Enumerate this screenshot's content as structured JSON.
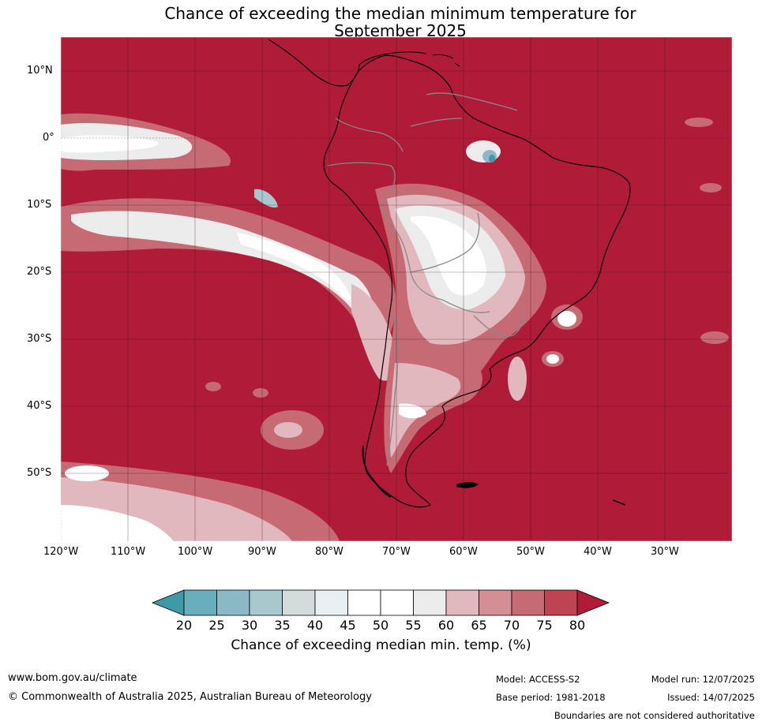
{
  "title": {
    "line1": "Chance of exceeding the median minimum temperature for",
    "line2": "September 2025"
  },
  "lat_labels": [
    "10°N",
    "0°",
    "10°S",
    "20°S",
    "30°S",
    "40°S",
    "50°S"
  ],
  "lon_labels": [
    "120°W",
    "110°W",
    "100°W",
    "90°W",
    "80°W",
    "70°W",
    "60°W",
    "50°W",
    "40°W",
    "30°W"
  ],
  "colorbar": {
    "ticks": [
      "20",
      "25",
      "30",
      "35",
      "40",
      "45",
      "50",
      "55",
      "60",
      "65",
      "70",
      "75",
      "80"
    ],
    "colors": [
      "#3f9aa7",
      "#6aaebd",
      "#8ab9c5",
      "#a9c8cd",
      "#d3dbdb",
      "#eaf0f1",
      "#ffffff",
      "#ffffff",
      "#ececec",
      "#e0b8bd",
      "#d48e96",
      "#c66a74",
      "#be4453",
      "#b01c38"
    ],
    "label": "Chance of exceeding median min. temp. (%)"
  },
  "map_colors": {
    "high": "#b01c38",
    "mid_high": "#c66a74",
    "mid": "#e0b8bd",
    "neutral": "#ececec",
    "neutral_white": "#ffffff",
    "low": "#8ab9c5"
  },
  "footer": {
    "website": "www.bom.gov.au/climate",
    "copyright": "© Commonwealth of Australia 2025, Australian Bureau of Meteorology",
    "model": "Model: ACCESS-S2",
    "base_period": "Base period: 1981-2018",
    "model_run": "Model run: 12/07/2025",
    "issued": "Issued: 14/07/2025",
    "boundaries_note": "Boundaries are not considered authoritative"
  }
}
